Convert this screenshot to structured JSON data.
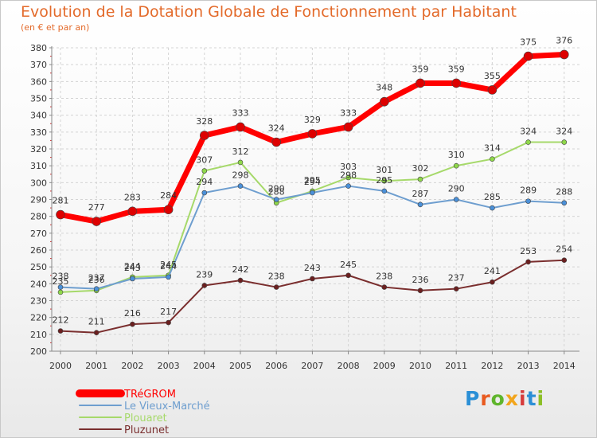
{
  "header": {
    "title": "Evolution de la Dotation Globale de Fonctionnement par Habitant",
    "subtitle": "(en € et par an)"
  },
  "logo": {
    "letters": [
      "P",
      "r",
      "o",
      "x",
      "i",
      "t",
      "i"
    ],
    "colors": [
      "#2b8fd6",
      "#e85a1f",
      "#5fb52c",
      "#f2a51c",
      "#d63b3b",
      "#2b8fd6",
      "#8cbf26"
    ]
  },
  "chart_data": {
    "type": "line",
    "title": "Evolution de la Dotation Globale de Fonctionnement par Habitant",
    "ylabel": "(en € et par an)",
    "xlabel": "",
    "ylim": [
      200,
      380
    ],
    "yticks": [
      200,
      210,
      220,
      230,
      240,
      250,
      260,
      270,
      280,
      290,
      300,
      310,
      320,
      330,
      340,
      350,
      360,
      370,
      380
    ],
    "x": [
      "2000",
      "2001",
      "2002",
      "2003",
      "2004",
      "2005",
      "2006",
      "2007",
      "2008",
      "2009",
      "2010",
      "2011",
      "2012",
      "2013",
      "2014"
    ],
    "legend_position": "bottom-left",
    "series": [
      {
        "name": "TRéGROM",
        "color": "#ff0000",
        "width": 7,
        "marker": "#dd0000",
        "values": [
          281,
          277,
          283,
          284,
          328,
          333,
          324,
          329,
          333,
          348,
          359,
          359,
          355,
          375,
          376
        ]
      },
      {
        "name": "Le Vieux-Marché",
        "color": "#6e9ecf",
        "width": 2,
        "marker": "#4a90d9",
        "values": [
          238,
          237,
          243,
          244,
          294,
          298,
          290,
          294,
          298,
          295,
          287,
          290,
          285,
          289,
          288
        ]
      },
      {
        "name": "Plouaret",
        "color": "#a6d96a",
        "width": 2,
        "marker": "#8fd84a",
        "values": [
          235,
          236,
          244,
          245,
          307,
          312,
          288,
          295,
          303,
          301,
          302,
          310,
          314,
          324,
          324
        ]
      },
      {
        "name": "Pluzunet",
        "color": "#7a2e2e",
        "width": 2,
        "marker": "#6b1f1f",
        "values": [
          212,
          211,
          216,
          217,
          239,
          242,
          238,
          243,
          245,
          238,
          236,
          237,
          241,
          253,
          254
        ]
      }
    ]
  }
}
